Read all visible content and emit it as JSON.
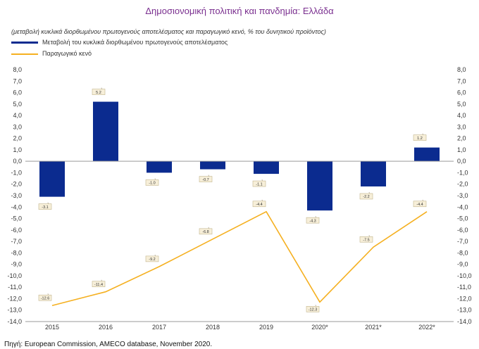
{
  "chart_data": {
    "type": "bar+line",
    "title": "Δημοσιονομική πολιτική και πανδημία: Ελλάδα",
    "subtitle": "(μεταβολή κυκλικά διορθωμένου πρωτογενούς αποτελέσματος και παραγωγικό κενό, % του δυνητικού προϊόντος)",
    "categories": [
      "2015",
      "2016",
      "2017",
      "2018",
      "2019",
      "2020*",
      "2021*",
      "2022*"
    ],
    "series": [
      {
        "name": "Μεταβολή του κυκλικά διορθωμένου πρωτογενούς αποτελέσματος",
        "kind": "bar",
        "color": "#0b2b8f",
        "values": [
          -3.1,
          5.2,
          -1.0,
          -0.7,
          -1.1,
          -4.3,
          -2.2,
          1.2
        ],
        "labels": [
          "-3.1",
          "5.2",
          "-1.0",
          "-0.7",
          "-1.1",
          "-4.3",
          "-2.2",
          "1.2"
        ]
      },
      {
        "name": "Παραγωγικό κενό",
        "kind": "line",
        "color": "#f5b020",
        "values": [
          -12.6,
          -11.4,
          -9.2,
          -6.8,
          -4.4,
          -12.3,
          -7.5,
          -4.4
        ],
        "labels": [
          "-12.6",
          "-11.4",
          "-9.2",
          "-6.8",
          "-4.4",
          "-12.3",
          "-7.5",
          "-4.4"
        ]
      }
    ],
    "ylim": [
      -14,
      8
    ],
    "yticks": [
      "8,0",
      "7,0",
      "6,0",
      "5,0",
      "4,0",
      "3,0",
      "2,0",
      "1,0",
      "0,0",
      "-1,0",
      "-2,0",
      "-3,0",
      "-4,0",
      "-5,0",
      "-6,0",
      "-7,0",
      "-8,0",
      "-9,0",
      "-10,0",
      "-11,0",
      "-12,0",
      "-13,0",
      "-14,0"
    ],
    "ytick_values": [
      8,
      7,
      6,
      5,
      4,
      3,
      2,
      1,
      0,
      -1,
      -2,
      -3,
      -4,
      -5,
      -6,
      -7,
      -8,
      -9,
      -10,
      -11,
      -12,
      -13,
      -14
    ],
    "source": "Πηγή: European Commission, AMECO database, November 2020."
  }
}
